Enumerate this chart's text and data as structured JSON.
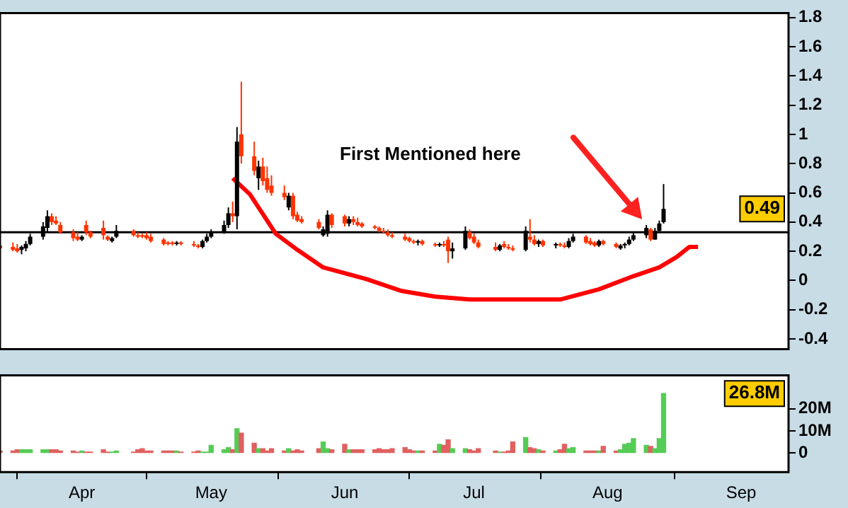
{
  "chart_data": [
    {
      "type": "candlestick",
      "xlim": [
        "--03-13",
        "--09-12"
      ],
      "ylim": [
        -0.47,
        1.83
      ],
      "yticks": [
        -0.4,
        -0.2,
        0,
        0.2,
        0.4,
        0.6,
        0.8,
        1,
        1.2,
        1.4,
        1.6,
        1.8
      ],
      "tick_labels": "y",
      "x": [
        "--03-13",
        "--03-16",
        "--03-17",
        "--03-18",
        "--03-19",
        "--03-20",
        "--03-23",
        "--03-24",
        "--03-25",
        "--03-26",
        "--03-27",
        "--03-30",
        "--03-31",
        "--04-01",
        "--04-02",
        "--04-03",
        "--04-06",
        "--04-07",
        "--04-08",
        "--04-09",
        "--04-13",
        "--04-14",
        "--04-15",
        "--04-16",
        "--04-17",
        "--04-20",
        "--04-21",
        "--04-22",
        "--04-23",
        "--04-24",
        "--04-27",
        "--04-28",
        "--04-29",
        "--04-30",
        "--05-01",
        "--05-04",
        "--05-05",
        "--05-06",
        "--05-07",
        "--05-08",
        "--05-11",
        "--05-12",
        "--05-13",
        "--05-14",
        "--05-15",
        "--05-18",
        "--05-19",
        "--05-20",
        "--05-21",
        "--05-22",
        "--05-26",
        "--05-27",
        "--05-28",
        "--05-29",
        "--06-01",
        "--06-02",
        "--06-03",
        "--06-04",
        "--06-05",
        "--06-08",
        "--06-09",
        "--06-10",
        "--06-11",
        "--06-12",
        "--06-15",
        "--06-16",
        "--06-17",
        "--06-18",
        "--06-19",
        "--06-22",
        "--06-23",
        "--06-24",
        "--06-25",
        "--06-26",
        "--06-29",
        "--06-30",
        "--07-01",
        "--07-02",
        "--07-06",
        "--07-07",
        "--07-08",
        "--07-09",
        "--07-10",
        "--07-13",
        "--07-14",
        "--07-15",
        "--07-16",
        "--07-17",
        "--07-20",
        "--07-21",
        "--07-22",
        "--07-23",
        "--07-24",
        "--07-27",
        "--07-28",
        "--07-29",
        "--07-30",
        "--07-31",
        "--08-03",
        "--08-04",
        "--08-05",
        "--08-06",
        "--08-07",
        "--08-10",
        "--08-11",
        "--08-12",
        "--08-13",
        "--08-14"
      ],
      "ohlc": [
        [
          0.24,
          0.26,
          0.21,
          0.22
        ],
        [
          0.23,
          0.26,
          0.2,
          0.21
        ],
        [
          0.22,
          0.25,
          0.19,
          0.2
        ],
        [
          0.21,
          0.24,
          0.18,
          0.23
        ],
        [
          0.22,
          0.27,
          0.2,
          0.25
        ],
        [
          0.25,
          0.32,
          0.24,
          0.3
        ],
        [
          0.3,
          0.4,
          0.28,
          0.37
        ],
        [
          0.36,
          0.48,
          0.33,
          0.44
        ],
        [
          0.44,
          0.46,
          0.38,
          0.4
        ],
        [
          0.41,
          0.44,
          0.38,
          0.39
        ],
        [
          0.38,
          0.4,
          0.32,
          0.33
        ],
        [
          0.33,
          0.35,
          0.27,
          0.29
        ],
        [
          0.3,
          0.33,
          0.27,
          0.28
        ],
        [
          0.28,
          0.31,
          0.27,
          0.3
        ],
        [
          0.38,
          0.41,
          0.31,
          0.33
        ],
        [
          0.33,
          0.34,
          0.29,
          0.3
        ],
        [
          0.36,
          0.41,
          0.28,
          0.31
        ],
        [
          0.3,
          0.31,
          0.27,
          0.28
        ],
        [
          0.27,
          0.3,
          0.26,
          0.29
        ],
        [
          0.3,
          0.38,
          0.29,
          0.34
        ],
        [
          0.34,
          0.35,
          0.3,
          0.31
        ],
        [
          0.31,
          0.33,
          0.29,
          0.3
        ],
        [
          0.31,
          0.32,
          0.29,
          0.3
        ],
        [
          0.31,
          0.33,
          0.28,
          0.29
        ],
        [
          0.3,
          0.32,
          0.26,
          0.27
        ],
        [
          0.28,
          0.29,
          0.24,
          0.25
        ],
        [
          0.26,
          0.27,
          0.24,
          0.25
        ],
        [
          0.26,
          0.27,
          0.24,
          0.25
        ],
        [
          0.25,
          0.27,
          0.24,
          0.26
        ],
        [
          0.26,
          0.27,
          0.24,
          0.25
        ],
        [
          0.25,
          0.27,
          0.23,
          0.24
        ],
        [
          0.24,
          0.25,
          0.22,
          0.23
        ],
        [
          0.23,
          0.28,
          0.22,
          0.27
        ],
        [
          0.27,
          0.32,
          0.26,
          0.3
        ],
        [
          0.3,
          0.35,
          0.29,
          0.33
        ],
        [
          0.33,
          0.41,
          0.32,
          0.38
        ],
        [
          0.38,
          0.5,
          0.36,
          0.46
        ],
        [
          0.46,
          0.54,
          0.4,
          0.44
        ],
        [
          0.44,
          1.05,
          0.35,
          0.95
        ],
        [
          1.0,
          1.36,
          0.8,
          0.85
        ],
        [
          0.85,
          0.95,
          0.72,
          0.75
        ],
        [
          0.7,
          0.82,
          0.62,
          0.78
        ],
        [
          0.78,
          0.84,
          0.65,
          0.68
        ],
        [
          0.7,
          0.78,
          0.6,
          0.62
        ],
        [
          0.65,
          0.72,
          0.58,
          0.6
        ],
        [
          0.6,
          0.65,
          0.55,
          0.57
        ],
        [
          0.5,
          0.6,
          0.48,
          0.58
        ],
        [
          0.58,
          0.6,
          0.42,
          0.44
        ],
        [
          0.45,
          0.47,
          0.4,
          0.41
        ],
        [
          0.42,
          0.44,
          0.39,
          0.4
        ],
        [
          0.4,
          0.42,
          0.35,
          0.36
        ],
        [
          0.31,
          0.37,
          0.3,
          0.35
        ],
        [
          0.32,
          0.48,
          0.3,
          0.45
        ],
        [
          0.45,
          0.46,
          0.36,
          0.38
        ],
        [
          0.44,
          0.45,
          0.37,
          0.39
        ],
        [
          0.39,
          0.44,
          0.37,
          0.42
        ],
        [
          0.42,
          0.44,
          0.38,
          0.4
        ],
        [
          0.4,
          0.43,
          0.37,
          0.38
        ],
        [
          0.39,
          0.4,
          0.36,
          0.37
        ],
        [
          0.37,
          0.38,
          0.35,
          0.36
        ],
        [
          0.36,
          0.37,
          0.33,
          0.34
        ],
        [
          0.34,
          0.36,
          0.32,
          0.33
        ],
        [
          0.33,
          0.35,
          0.3,
          0.31
        ],
        [
          0.31,
          0.33,
          0.29,
          0.3
        ],
        [
          0.3,
          0.32,
          0.27,
          0.28
        ],
        [
          0.29,
          0.3,
          0.26,
          0.27
        ],
        [
          0.27,
          0.28,
          0.25,
          0.26
        ],
        [
          0.26,
          0.28,
          0.24,
          0.27
        ],
        [
          0.27,
          0.28,
          0.24,
          0.25
        ],
        [
          0.25,
          0.26,
          0.23,
          0.24
        ],
        [
          0.24,
          0.26,
          0.23,
          0.25
        ],
        [
          0.25,
          0.27,
          0.23,
          0.24
        ],
        [
          0.28,
          0.3,
          0.12,
          0.2
        ],
        [
          0.2,
          0.26,
          0.15,
          0.22
        ],
        [
          0.22,
          0.37,
          0.21,
          0.34
        ],
        [
          0.33,
          0.35,
          0.28,
          0.29
        ],
        [
          0.3,
          0.32,
          0.25,
          0.26
        ],
        [
          0.26,
          0.28,
          0.22,
          0.23
        ],
        [
          0.23,
          0.26,
          0.2,
          0.21
        ],
        [
          0.21,
          0.25,
          0.2,
          0.24
        ],
        [
          0.25,
          0.27,
          0.22,
          0.23
        ],
        [
          0.23,
          0.25,
          0.21,
          0.22
        ],
        [
          0.22,
          0.24,
          0.2,
          0.21
        ],
        [
          0.21,
          0.37,
          0.2,
          0.34
        ],
        [
          0.3,
          0.42,
          0.26,
          0.28
        ],
        [
          0.28,
          0.31,
          0.24,
          0.25
        ],
        [
          0.25,
          0.28,
          0.23,
          0.27
        ],
        [
          0.27,
          0.28,
          0.23,
          0.24
        ],
        [
          0.24,
          0.26,
          0.22,
          0.25
        ],
        [
          0.25,
          0.26,
          0.23,
          0.24
        ],
        [
          0.24,
          0.26,
          0.22,
          0.23
        ],
        [
          0.23,
          0.29,
          0.22,
          0.27
        ],
        [
          0.27,
          0.32,
          0.26,
          0.3
        ],
        [
          0.3,
          0.31,
          0.25,
          0.26
        ],
        [
          0.27,
          0.29,
          0.24,
          0.25
        ],
        [
          0.26,
          0.27,
          0.23,
          0.24
        ],
        [
          0.24,
          0.28,
          0.23,
          0.27
        ],
        [
          0.27,
          0.28,
          0.24,
          0.25
        ],
        [
          0.25,
          0.26,
          0.22,
          0.23
        ],
        [
          0.22,
          0.25,
          0.21,
          0.24
        ],
        [
          0.24,
          0.26,
          0.22,
          0.25
        ],
        [
          0.25,
          0.3,
          0.24,
          0.28
        ],
        [
          0.28,
          0.33,
          0.27,
          0.31
        ],
        [
          0.31,
          0.38,
          0.29,
          0.36
        ],
        [
          0.35,
          0.36,
          0.27,
          0.28
        ],
        [
          0.28,
          0.36,
          0.28,
          0.34
        ],
        [
          0.34,
          0.41,
          0.33,
          0.39
        ],
        [
          0.4,
          0.66,
          0.39,
          0.49
        ]
      ],
      "colors": [
        "#ff3300",
        "#ff3300",
        "#ff3300",
        "#000000",
        "#000000",
        "#000000",
        "#000000",
        "#000000",
        "#ff3300",
        "#ff3300",
        "#ff3300",
        "#ff3300",
        "#ff3300",
        "#000000",
        "#ff3300",
        "#ff3300",
        "#ff3300",
        "#ff3300",
        "#000000",
        "#000000",
        "#ff3300",
        "#ff3300",
        "#ff3300",
        "#ff3300",
        "#ff3300",
        "#ff3300",
        "#ff3300",
        "#ff3300",
        "#000000",
        "#ff3300",
        "#ff3300",
        "#ff3300",
        "#000000",
        "#000000",
        "#000000",
        "#000000",
        "#000000",
        "#ff3300",
        "#000000",
        "#ff3300",
        "#ff3300",
        "#000000",
        "#ff3300",
        "#ff3300",
        "#ff3300",
        "#ff3300",
        "#000000",
        "#ff3300",
        "#ff3300",
        "#ff3300",
        "#ff3300",
        "#000000",
        "#000000",
        "#ff3300",
        "#ff3300",
        "#000000",
        "#ff3300",
        "#ff3300",
        "#ff3300",
        "#ff3300",
        "#ff3300",
        "#ff3300",
        "#ff3300",
        "#ff3300",
        "#ff3300",
        "#ff3300",
        "#ff3300",
        "#000000",
        "#ff3300",
        "#ff3300",
        "#000000",
        "#ff3300",
        "#ff3300",
        "#000000",
        "#000000",
        "#ff3300",
        "#ff3300",
        "#ff3300",
        "#ff3300",
        "#000000",
        "#ff3300",
        "#ff3300",
        "#ff3300",
        "#000000",
        "#ff3300",
        "#ff3300",
        "#000000",
        "#ff3300",
        "#000000",
        "#ff3300",
        "#ff3300",
        "#000000",
        "#000000",
        "#ff3300",
        "#ff3300",
        "#ff3300",
        "#000000",
        "#ff3300",
        "#ff3300",
        "#000000",
        "#000000",
        "#000000",
        "#000000",
        "#000000",
        "#ff3300",
        "#000000",
        "#000000",
        "#000000"
      ],
      "series": [
        {
          "type": "line",
          "color": "#ff0000",
          "x": [
            "--05-06",
            "--05-10",
            "--05-16",
            "--05-21",
            "--05-27",
            "--06-06",
            "--06-14",
            "--06-22",
            "--06-30",
            "--07-21",
            "--07-30",
            "--08-07",
            "--08-13",
            "--08-17",
            "--08-20",
            "--08-22"
          ],
          "values": [
            0.7,
            0.59,
            0.32,
            0.21,
            0.09,
            0.01,
            -0.07,
            -0.11,
            -0.13,
            -0.13,
            -0.06,
            0.03,
            0.09,
            0.16,
            0.23,
            0.23
          ]
        }
      ],
      "ref_lines": [
        {
          "axis": "y",
          "value": 0.33,
          "color": "#000000"
        }
      ],
      "annotations": [
        "First Mentioned here",
        "0.49"
      ]
    },
    {
      "type": "bar",
      "xlim": [
        "--03-13",
        "--09-12"
      ],
      "xticks": [
        {
          "value": "--04-01",
          "label": "Apr"
        },
        {
          "value": "--05-01",
          "label": "May"
        },
        {
          "value": "--06-01",
          "label": "Jun"
        },
        {
          "value": "--07-01",
          "label": "Jul"
        },
        {
          "value": "--08-01",
          "label": "Aug"
        },
        {
          "value": "--09-01",
          "label": "Sep"
        }
      ],
      "ylim": [
        -8.5,
        35
      ],
      "yticks": [
        {
          "value": 0,
          "label": "0"
        },
        {
          "value": 10,
          "label": "10M"
        },
        {
          "value": 20,
          "label": "20M"
        }
      ],
      "x": [
        "--03-13",
        "--03-16",
        "--03-17",
        "--03-18",
        "--03-19",
        "--03-20",
        "--03-23",
        "--03-24",
        "--03-25",
        "--03-26",
        "--03-27",
        "--03-30",
        "--03-31",
        "--04-01",
        "--04-02",
        "--04-03",
        "--04-06",
        "--04-07",
        "--04-08",
        "--04-09",
        "--04-13",
        "--04-14",
        "--04-15",
        "--04-16",
        "--04-17",
        "--04-20",
        "--04-21",
        "--04-22",
        "--04-23",
        "--04-24",
        "--04-27",
        "--04-28",
        "--04-29",
        "--04-30",
        "--05-01",
        "--05-04",
        "--05-05",
        "--05-06",
        "--05-07",
        "--05-08",
        "--05-11",
        "--05-12",
        "--05-13",
        "--05-14",
        "--05-15",
        "--05-18",
        "--05-19",
        "--05-20",
        "--05-21",
        "--05-22",
        "--05-26",
        "--05-27",
        "--05-28",
        "--05-29",
        "--06-01",
        "--06-02",
        "--06-03",
        "--06-04",
        "--06-05",
        "--06-08",
        "--06-09",
        "--06-10",
        "--06-11",
        "--06-12",
        "--06-15",
        "--06-16",
        "--06-17",
        "--06-18",
        "--06-19",
        "--06-22",
        "--06-23",
        "--06-24",
        "--06-25",
        "--06-26",
        "--06-29",
        "--06-30",
        "--07-01",
        "--07-02",
        "--07-06",
        "--07-07",
        "--07-08",
        "--07-09",
        "--07-10",
        "--07-13",
        "--07-14",
        "--07-15",
        "--07-16",
        "--07-17",
        "--07-20",
        "--07-21",
        "--07-22",
        "--07-23",
        "--07-24",
        "--07-27",
        "--07-28",
        "--07-29",
        "--07-30",
        "--07-31",
        "--08-03",
        "--08-04",
        "--08-05",
        "--08-06",
        "--08-07",
        "--08-10",
        "--08-11",
        "--08-12",
        "--08-13",
        "--08-14"
      ],
      "values": [
        1,
        1,
        1.5,
        1.5,
        1.5,
        1.5,
        1.5,
        1.5,
        1.5,
        1.5,
        1,
        1,
        0.5,
        1,
        0.5,
        0.5,
        1.5,
        0.5,
        0.5,
        1,
        0.5,
        1.5,
        2,
        1,
        1,
        1,
        1,
        1,
        1,
        0.5,
        0.5,
        1,
        0.5,
        0.5,
        3.5,
        1.5,
        2.5,
        1.5,
        11,
        9,
        4.5,
        2,
        2,
        1,
        2,
        1,
        2,
        1,
        1.5,
        1,
        2,
        5,
        2,
        1.5,
        4,
        1.5,
        1.5,
        1.5,
        1.5,
        1.5,
        2,
        1.5,
        1.5,
        2,
        2.5,
        1.5,
        1,
        1,
        1,
        1,
        4,
        3.5,
        6,
        2,
        2,
        1.5,
        1,
        2,
        1,
        0.5,
        0.5,
        1,
        5,
        7,
        2.5,
        2,
        1.5,
        1,
        1,
        1.5,
        4,
        2,
        2.5,
        1,
        1,
        1,
        1,
        3,
        1,
        1.5,
        4,
        4.5,
        6.5,
        3.5,
        3,
        2,
        6.5,
        26.8
      ],
      "colors": [
        "#e06060",
        "#e06060",
        "#e06060",
        "#55cc55",
        "#55cc55",
        "#55cc55",
        "#55cc55",
        "#55cc55",
        "#e06060",
        "#e06060",
        "#e06060",
        "#e06060",
        "#e06060",
        "#55cc55",
        "#e06060",
        "#e06060",
        "#e06060",
        "#e06060",
        "#55cc55",
        "#55cc55",
        "#e06060",
        "#e06060",
        "#e06060",
        "#e06060",
        "#e06060",
        "#e06060",
        "#e06060",
        "#e06060",
        "#55cc55",
        "#e06060",
        "#e06060",
        "#e06060",
        "#55cc55",
        "#55cc55",
        "#55cc55",
        "#55cc55",
        "#55cc55",
        "#e06060",
        "#55cc55",
        "#e06060",
        "#e06060",
        "#55cc55",
        "#e06060",
        "#e06060",
        "#e06060",
        "#e06060",
        "#55cc55",
        "#e06060",
        "#e06060",
        "#e06060",
        "#e06060",
        "#55cc55",
        "#55cc55",
        "#e06060",
        "#e06060",
        "#55cc55",
        "#e06060",
        "#e06060",
        "#e06060",
        "#e06060",
        "#e06060",
        "#e06060",
        "#e06060",
        "#e06060",
        "#e06060",
        "#e06060",
        "#e06060",
        "#55cc55",
        "#e06060",
        "#e06060",
        "#55cc55",
        "#e06060",
        "#e06060",
        "#55cc55",
        "#55cc55",
        "#e06060",
        "#e06060",
        "#e06060",
        "#e06060",
        "#55cc55",
        "#e06060",
        "#e06060",
        "#e06060",
        "#55cc55",
        "#e06060",
        "#e06060",
        "#55cc55",
        "#e06060",
        "#55cc55",
        "#e06060",
        "#e06060",
        "#55cc55",
        "#55cc55",
        "#e06060",
        "#e06060",
        "#e06060",
        "#55cc55",
        "#e06060",
        "#e06060",
        "#55cc55",
        "#55cc55",
        "#55cc55",
        "#55cc55",
        "#55cc55",
        "#e06060",
        "#55cc55",
        "#55cc55",
        "#55cc55"
      ],
      "annotations": [
        "26.8M"
      ]
    }
  ]
}
